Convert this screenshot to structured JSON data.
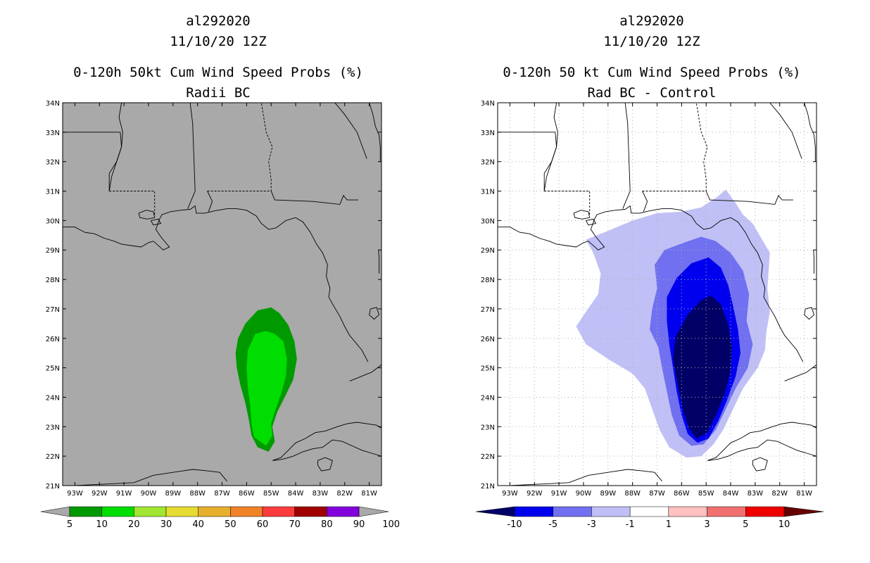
{
  "chart_data": [
    {
      "type": "contour_map",
      "title_line1": "al292020",
      "title_line2": "11/10/20 12Z",
      "title_line3": "0-120h 50kt Cum Wind Speed Probs (%)",
      "title_line4": "Radii BC",
      "background": "#a9a9a9",
      "xlim": [
        -93.5,
        -80.5
      ],
      "ylim": [
        21,
        34
      ],
      "x_ticks": [
        -93,
        -92,
        -91,
        -90,
        -89,
        -88,
        -87,
        -86,
        -85,
        -84,
        -83,
        -82,
        -81
      ],
      "x_tick_labels": [
        "93W",
        "92W",
        "91W",
        "90W",
        "89W",
        "88W",
        "87W",
        "86W",
        "85W",
        "84W",
        "83W",
        "82W",
        "81W"
      ],
      "y_ticks": [
        21,
        22,
        23,
        24,
        25,
        26,
        27,
        28,
        29,
        30,
        31,
        32,
        33,
        34
      ],
      "y_tick_labels": [
        "21N",
        "22N",
        "23N",
        "24N",
        "25N",
        "26N",
        "27N",
        "28N",
        "29N",
        "30N",
        "31N",
        "32N",
        "33N",
        "34N"
      ],
      "grid": false,
      "contours": [
        {
          "level_min": 5,
          "level_max": 10,
          "color": "#009900",
          "lonlat": [
            [
              -85,
              27.05
            ],
            [
              -85.55,
              26.95
            ],
            [
              -86.05,
              26.5
            ],
            [
              -86.35,
              26
            ],
            [
              -86.45,
              25.5
            ],
            [
              -86.4,
              25
            ],
            [
              -86.25,
              24.4
            ],
            [
              -86.05,
              23.8
            ],
            [
              -85.9,
              23.2
            ],
            [
              -85.8,
              22.7
            ],
            [
              -85.55,
              22.3
            ],
            [
              -85.1,
              22.15
            ],
            [
              -84.85,
              22.5
            ],
            [
              -84.95,
              23
            ],
            [
              -84.75,
              23.5
            ],
            [
              -84.45,
              24
            ],
            [
              -84.1,
              24.6
            ],
            [
              -83.95,
              25.3
            ],
            [
              -84.05,
              25.9
            ],
            [
              -84.3,
              26.45
            ],
            [
              -84.65,
              26.85
            ]
          ]
        },
        {
          "level_min": 10,
          "level_max": 20,
          "color": "#00dd00",
          "lonlat": [
            [
              -85.2,
              26.25
            ],
            [
              -85.65,
              26.15
            ],
            [
              -85.95,
              25.6
            ],
            [
              -86.0,
              25
            ],
            [
              -85.95,
              24.3
            ],
            [
              -85.85,
              23.7
            ],
            [
              -85.8,
              23.1
            ],
            [
              -85.7,
              22.65
            ],
            [
              -85.2,
              22.35
            ],
            [
              -84.95,
              22.7
            ],
            [
              -85.0,
              23.1
            ],
            [
              -84.85,
              23.5
            ],
            [
              -84.6,
              24.1
            ],
            [
              -84.4,
              24.7
            ],
            [
              -84.35,
              25.3
            ],
            [
              -84.5,
              25.9
            ],
            [
              -84.85,
              26.15
            ]
          ]
        }
      ],
      "colorbar": {
        "labels": [
          "5",
          "10",
          "20",
          "30",
          "40",
          "50",
          "60",
          "70",
          "80",
          "90",
          "100"
        ],
        "colors": [
          "#009900",
          "#00dd00",
          "#a0e632",
          "#e6dc32",
          "#e6af2d",
          "#f08228",
          "#fa3c3c",
          "#a00000",
          "#8200dc"
        ],
        "end_colors": [
          "#a9a9a9",
          "#a9a9a9"
        ]
      }
    },
    {
      "type": "contour_map",
      "title_line1": "al292020",
      "title_line2": "11/10/20 12Z",
      "title_line3": "0-120h 50 kt Cum Wind Speed Probs (%)",
      "title_line4": "Rad BC - Control",
      "background": "#ffffff",
      "xlim": [
        -93.5,
        -80.5
      ],
      "ylim": [
        21,
        34
      ],
      "x_ticks": [
        -93,
        -92,
        -91,
        -90,
        -89,
        -88,
        -87,
        -86,
        -85,
        -84,
        -83,
        -82,
        -81
      ],
      "x_tick_labels": [
        "93W",
        "92W",
        "91W",
        "90W",
        "89W",
        "88W",
        "87W",
        "86W",
        "85W",
        "84W",
        "83W",
        "82W",
        "81W"
      ],
      "y_ticks": [
        21,
        22,
        23,
        24,
        25,
        26,
        27,
        28,
        29,
        30,
        31,
        32,
        33,
        34
      ],
      "y_tick_labels": [
        "21N",
        "22N",
        "23N",
        "24N",
        "25N",
        "26N",
        "27N",
        "28N",
        "29N",
        "30N",
        "31N",
        "32N",
        "33N",
        "34N"
      ],
      "grid": true,
      "contours": [
        {
          "level_min": -3,
          "level_max": -1,
          "color": "#c0c0f6",
          "lonlat": [
            [
              -84.2,
              31.05
            ],
            [
              -84.55,
              30.8
            ],
            [
              -85.2,
              30.45
            ],
            [
              -86,
              30.3
            ],
            [
              -87,
              30.25
            ],
            [
              -88,
              30
            ],
            [
              -89,
              29.65
            ],
            [
              -89.9,
              29.35
            ],
            [
              -89.6,
              28.9
            ],
            [
              -89.3,
              28.2
            ],
            [
              -89.4,
              27.5
            ],
            [
              -89.9,
              26.9
            ],
            [
              -90.3,
              26.4
            ],
            [
              -89.9,
              25.8
            ],
            [
              -89.0,
              25.3
            ],
            [
              -88.0,
              24.8
            ],
            [
              -87.5,
              24.3
            ],
            [
              -87.2,
              23.6
            ],
            [
              -86.9,
              22.9
            ],
            [
              -86.5,
              22.3
            ],
            [
              -85.8,
              21.95
            ],
            [
              -85.2,
              22.0
            ],
            [
              -84.7,
              22.4
            ],
            [
              -84.3,
              22.9
            ],
            [
              -83.9,
              23.6
            ],
            [
              -83.5,
              24.3
            ],
            [
              -82.9,
              25.0
            ],
            [
              -82.6,
              25.6
            ],
            [
              -82.55,
              26.2
            ],
            [
              -82.4,
              26.9
            ],
            [
              -82.5,
              27.7
            ],
            [
              -82.45,
              28.3
            ],
            [
              -82.4,
              28.9
            ],
            [
              -82.75,
              29.4
            ],
            [
              -83.1,
              29.9
            ],
            [
              -83.5,
              30.2
            ],
            [
              -83.8,
              30.6
            ]
          ]
        },
        {
          "level_min": -5,
          "level_max": -3,
          "color": "#7070f0",
          "lonlat": [
            [
              -85.2,
              29.45
            ],
            [
              -85.9,
              29.25
            ],
            [
              -86.7,
              29.0
            ],
            [
              -87.1,
              28.5
            ],
            [
              -87.0,
              27.7
            ],
            [
              -87.2,
              27.0
            ],
            [
              -87.3,
              26.3
            ],
            [
              -86.95,
              25.7
            ],
            [
              -86.8,
              25.0
            ],
            [
              -86.6,
              24.2
            ],
            [
              -86.4,
              23.4
            ],
            [
              -86.1,
              22.7
            ],
            [
              -85.6,
              22.35
            ],
            [
              -85.1,
              22.4
            ],
            [
              -84.6,
              22.9
            ],
            [
              -84.2,
              23.6
            ],
            [
              -83.8,
              24.3
            ],
            [
              -83.3,
              25.0
            ],
            [
              -83.1,
              25.8
            ],
            [
              -83.35,
              26.6
            ],
            [
              -83.25,
              27.5
            ],
            [
              -83.5,
              28.3
            ],
            [
              -84.0,
              28.9
            ],
            [
              -84.6,
              29.3
            ]
          ]
        },
        {
          "level_min": -10,
          "level_max": -5,
          "color": "#0000ee",
          "lonlat": [
            [
              -84.9,
              28.75
            ],
            [
              -85.6,
              28.55
            ],
            [
              -86.2,
              28.05
            ],
            [
              -86.6,
              27.4
            ],
            [
              -86.6,
              26.6
            ],
            [
              -86.5,
              25.8
            ],
            [
              -86.35,
              25.0
            ],
            [
              -86.2,
              24.2
            ],
            [
              -86.0,
              23.4
            ],
            [
              -85.75,
              22.75
            ],
            [
              -85.35,
              22.45
            ],
            [
              -84.9,
              22.6
            ],
            [
              -84.5,
              23.2
            ],
            [
              -84.15,
              23.9
            ],
            [
              -83.8,
              24.7
            ],
            [
              -83.6,
              25.5
            ],
            [
              -83.7,
              26.3
            ],
            [
              -83.9,
              27.1
            ],
            [
              -84.1,
              27.8
            ],
            [
              -84.4,
              28.4
            ]
          ]
        },
        {
          "level_min": -100,
          "level_max": -10,
          "color": "#000066",
          "lonlat": [
            [
              -84.8,
              27.45
            ],
            [
              -85.2,
              27.3
            ],
            [
              -85.75,
              26.8
            ],
            [
              -86.25,
              26.05
            ],
            [
              -86.35,
              25.3
            ],
            [
              -86.15,
              24.4
            ],
            [
              -85.95,
              23.6
            ],
            [
              -85.7,
              22.95
            ],
            [
              -85.4,
              22.6
            ],
            [
              -84.95,
              22.8
            ],
            [
              -84.6,
              23.4
            ],
            [
              -84.25,
              24.1
            ],
            [
              -84.0,
              24.9
            ],
            [
              -83.95,
              25.7
            ],
            [
              -84.1,
              26.45
            ],
            [
              -84.4,
              27.15
            ]
          ]
        }
      ],
      "colorbar": {
        "labels": [
          "-10",
          "-5",
          "-3",
          "-1",
          "1",
          "3",
          "5",
          "10"
        ],
        "colors": [
          "#0000ee",
          "#7070f0",
          "#c0c0f6",
          "#ffffff",
          "#ffc0c0",
          "#f07070",
          "#ee0000"
        ],
        "end_colors": [
          "#000066",
          "#660000"
        ]
      }
    }
  ]
}
